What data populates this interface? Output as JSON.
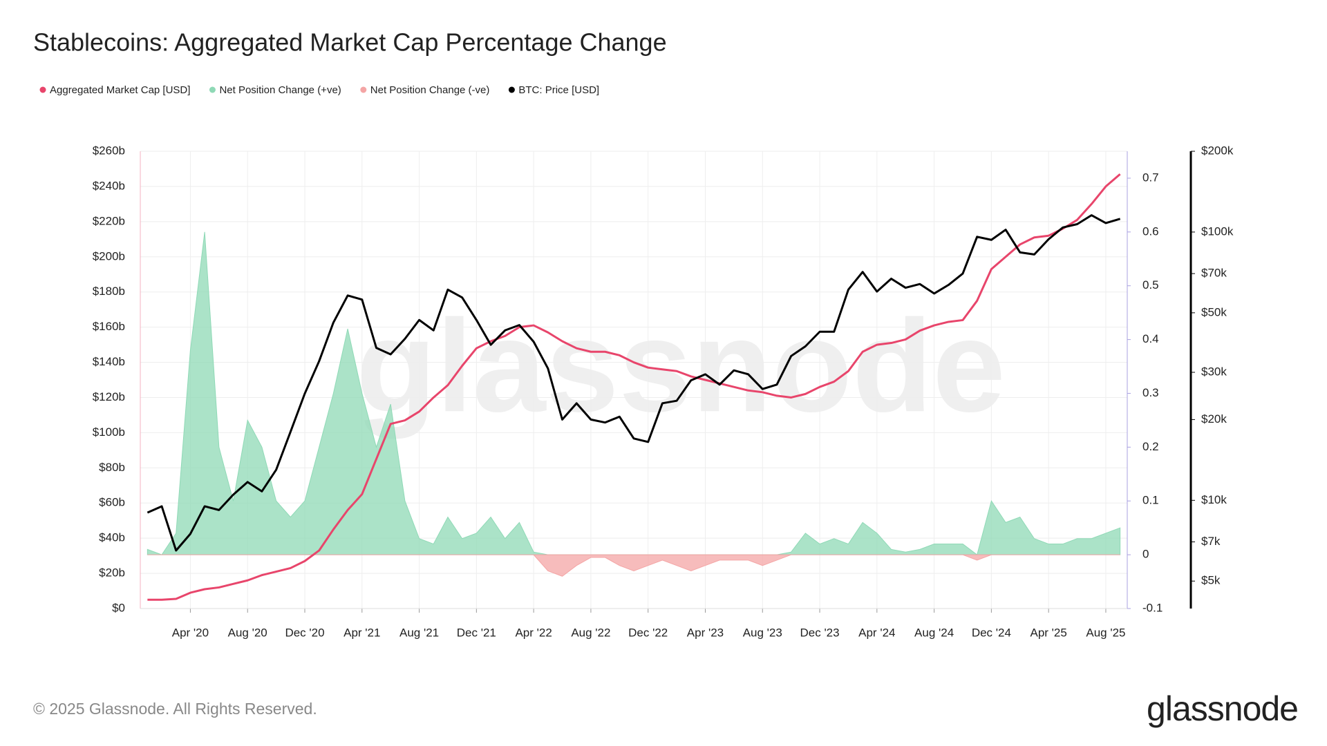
{
  "chart_data": {
    "type": "combo",
    "title": "Stablecoins: Aggregated Market Cap Percentage Change",
    "x": [
      "2020-01",
      "2020-02",
      "2020-03",
      "2020-04",
      "2020-05",
      "2020-06",
      "2020-07",
      "2020-08",
      "2020-09",
      "2020-10",
      "2020-11",
      "2020-12",
      "2021-01",
      "2021-02",
      "2021-03",
      "2021-04",
      "2021-05",
      "2021-06",
      "2021-07",
      "2021-08",
      "2021-09",
      "2021-10",
      "2021-11",
      "2021-12",
      "2022-01",
      "2022-02",
      "2022-03",
      "2022-04",
      "2022-05",
      "2022-06",
      "2022-07",
      "2022-08",
      "2022-09",
      "2022-10",
      "2022-11",
      "2022-12",
      "2023-01",
      "2023-02",
      "2023-03",
      "2023-04",
      "2023-05",
      "2023-06",
      "2023-07",
      "2023-08",
      "2023-09",
      "2023-10",
      "2023-11",
      "2023-12",
      "2024-01",
      "2024-02",
      "2024-03",
      "2024-04",
      "2024-05",
      "2024-06",
      "2024-07",
      "2024-08",
      "2024-09",
      "2024-10",
      "2024-11",
      "2024-12",
      "2025-01",
      "2025-02",
      "2025-03",
      "2025-04",
      "2025-05",
      "2025-06",
      "2025-07",
      "2025-08",
      "2025-09"
    ],
    "series": [
      {
        "name": "Aggregated Market Cap [USD]",
        "color": "#e8456b",
        "kind": "line",
        "axis": "y",
        "values": [
          5,
          5,
          5.5,
          9,
          11,
          12,
          14,
          16,
          19,
          21,
          23,
          27,
          33,
          45,
          56,
          65,
          85,
          105,
          107,
          112,
          120,
          127,
          138,
          148,
          152,
          155,
          160,
          161,
          157,
          152,
          148,
          146,
          146,
          144,
          140,
          137,
          136,
          135,
          132,
          130,
          128,
          126,
          124,
          123,
          121,
          120,
          122,
          126,
          129,
          135,
          146,
          150,
          151,
          153,
          158,
          161,
          163,
          164,
          175,
          193,
          200,
          207,
          211,
          212,
          216,
          221,
          230,
          240,
          247
        ]
      },
      {
        "name": "Net Position Change (+ve)",
        "color": "#8fd9b6",
        "kind": "area",
        "axis": "y2",
        "values": [
          0.01,
          0,
          0.04,
          0.38,
          0.6,
          0.2,
          0.1,
          0.25,
          0.2,
          0.1,
          0.07,
          0.1,
          0.2,
          0.3,
          0.42,
          0.3,
          0.2,
          0.28,
          0.1,
          0.03,
          0.02,
          0.07,
          0.03,
          0.04,
          0.07,
          0.03,
          0.06,
          0.005,
          0,
          0,
          0,
          0,
          0,
          0,
          0,
          0,
          0,
          0,
          0,
          0,
          0,
          0,
          0,
          0,
          0,
          0.005,
          0.04,
          0.02,
          0.03,
          0.02,
          0.06,
          0.04,
          0.01,
          0.005,
          0.01,
          0.02,
          0.02,
          0.02,
          0,
          0.1,
          0.06,
          0.07,
          0.03,
          0.02,
          0.02,
          0.03,
          0.03,
          0.04,
          0.05
        ]
      },
      {
        "name": "Net Position Change (-ve)",
        "color": "#f4a5a5",
        "kind": "area",
        "axis": "y2",
        "values": [
          0,
          0,
          0,
          0,
          0,
          0,
          0,
          0,
          0,
          0,
          0,
          0,
          0,
          0,
          0,
          0,
          0,
          0,
          0,
          0,
          0,
          0,
          0,
          0,
          0,
          0,
          0,
          0,
          -0.03,
          -0.04,
          -0.02,
          -0.005,
          -0.005,
          -0.02,
          -0.03,
          -0.02,
          -0.01,
          -0.02,
          -0.03,
          -0.02,
          -0.01,
          -0.01,
          -0.01,
          -0.02,
          -0.01,
          0,
          0,
          0,
          0,
          0,
          0,
          0,
          0,
          0,
          0,
          0,
          0,
          0,
          -0.01,
          0,
          0,
          0,
          0,
          0,
          0,
          0,
          0,
          0,
          0
        ]
      },
      {
        "name": "BTC: Price [USD]",
        "color": "#000000",
        "kind": "line",
        "axis": "y3",
        "values": [
          9000,
          9500,
          6500,
          7500,
          9500,
          9200,
          10500,
          11700,
          10800,
          13000,
          18000,
          25000,
          33000,
          46000,
          58000,
          56000,
          37000,
          35000,
          40000,
          47000,
          43000,
          61000,
          57000,
          47000,
          38000,
          43000,
          45000,
          39000,
          31000,
          20000,
          23000,
          20000,
          19500,
          20500,
          17000,
          16500,
          23000,
          23500,
          28000,
          29500,
          27000,
          30500,
          29500,
          26000,
          27000,
          34500,
          37500,
          42500,
          42500,
          61000,
          71000,
          60000,
          67000,
          62000,
          64000,
          59000,
          63500,
          70000,
          96000,
          93500,
          102000,
          84000,
          82500,
          94000,
          104000,
          107000,
          115500,
          108000,
          112000
        ]
      }
    ],
    "xticks": [
      {
        "value": "2020-04",
        "label": "Apr '20"
      },
      {
        "value": "2020-08",
        "label": "Aug '20"
      },
      {
        "value": "2020-12",
        "label": "Dec '20"
      },
      {
        "value": "2021-04",
        "label": "Apr '21"
      },
      {
        "value": "2021-08",
        "label": "Aug '21"
      },
      {
        "value": "2021-12",
        "label": "Dec '21"
      },
      {
        "value": "2022-04",
        "label": "Apr '22"
      },
      {
        "value": "2022-08",
        "label": "Aug '22"
      },
      {
        "value": "2022-12",
        "label": "Dec '22"
      },
      {
        "value": "2023-04",
        "label": "Apr '23"
      },
      {
        "value": "2023-08",
        "label": "Aug '23"
      },
      {
        "value": "2023-12",
        "label": "Dec '23"
      },
      {
        "value": "2024-04",
        "label": "Apr '24"
      },
      {
        "value": "2024-08",
        "label": "Aug '24"
      },
      {
        "value": "2024-12",
        "label": "Dec '24"
      },
      {
        "value": "2025-04",
        "label": "Apr '25"
      },
      {
        "value": "2025-08",
        "label": "Aug '25"
      }
    ],
    "ylim": [
      0,
      260
    ],
    "yticks": [
      {
        "value": 0,
        "label": "$0"
      },
      {
        "value": 20,
        "label": "$20b"
      },
      {
        "value": 40,
        "label": "$40b"
      },
      {
        "value": 60,
        "label": "$60b"
      },
      {
        "value": 80,
        "label": "$80b"
      },
      {
        "value": 100,
        "label": "$100b"
      },
      {
        "value": 120,
        "label": "$120b"
      },
      {
        "value": 140,
        "label": "$140b"
      },
      {
        "value": 160,
        "label": "$160b"
      },
      {
        "value": 180,
        "label": "$180b"
      },
      {
        "value": 200,
        "label": "$200b"
      },
      {
        "value": 220,
        "label": "$220b"
      },
      {
        "value": 240,
        "label": "$240b"
      },
      {
        "value": 260,
        "label": "$260b"
      }
    ],
    "y2lim": [
      -0.1,
      0.75
    ],
    "y2ticks": [
      -0.1,
      0,
      0.1,
      0.2,
      0.3,
      0.4,
      0.5,
      0.6,
      0.7
    ],
    "y3lim": [
      3950,
      200000
    ],
    "y3log": true,
    "y3ticks": [
      {
        "value": 5000,
        "label": "$5k"
      },
      {
        "value": 7000,
        "label": "$7k"
      },
      {
        "value": 10000,
        "label": "$10k"
      },
      {
        "value": 20000,
        "label": "$20k"
      },
      {
        "value": 30000,
        "label": "$30k"
      },
      {
        "value": 50000,
        "label": "$50k"
      },
      {
        "value": 70000,
        "label": "$70k"
      },
      {
        "value": 100000,
        "label": "$100k"
      },
      {
        "value": 200000,
        "label": "$200k"
      }
    ],
    "grid": true,
    "legend": "top-left"
  },
  "watermark": "glassnode",
  "footer": {
    "copyright": "© 2025 Glassnode. All Rights Reserved.",
    "logo": "glassnode"
  }
}
